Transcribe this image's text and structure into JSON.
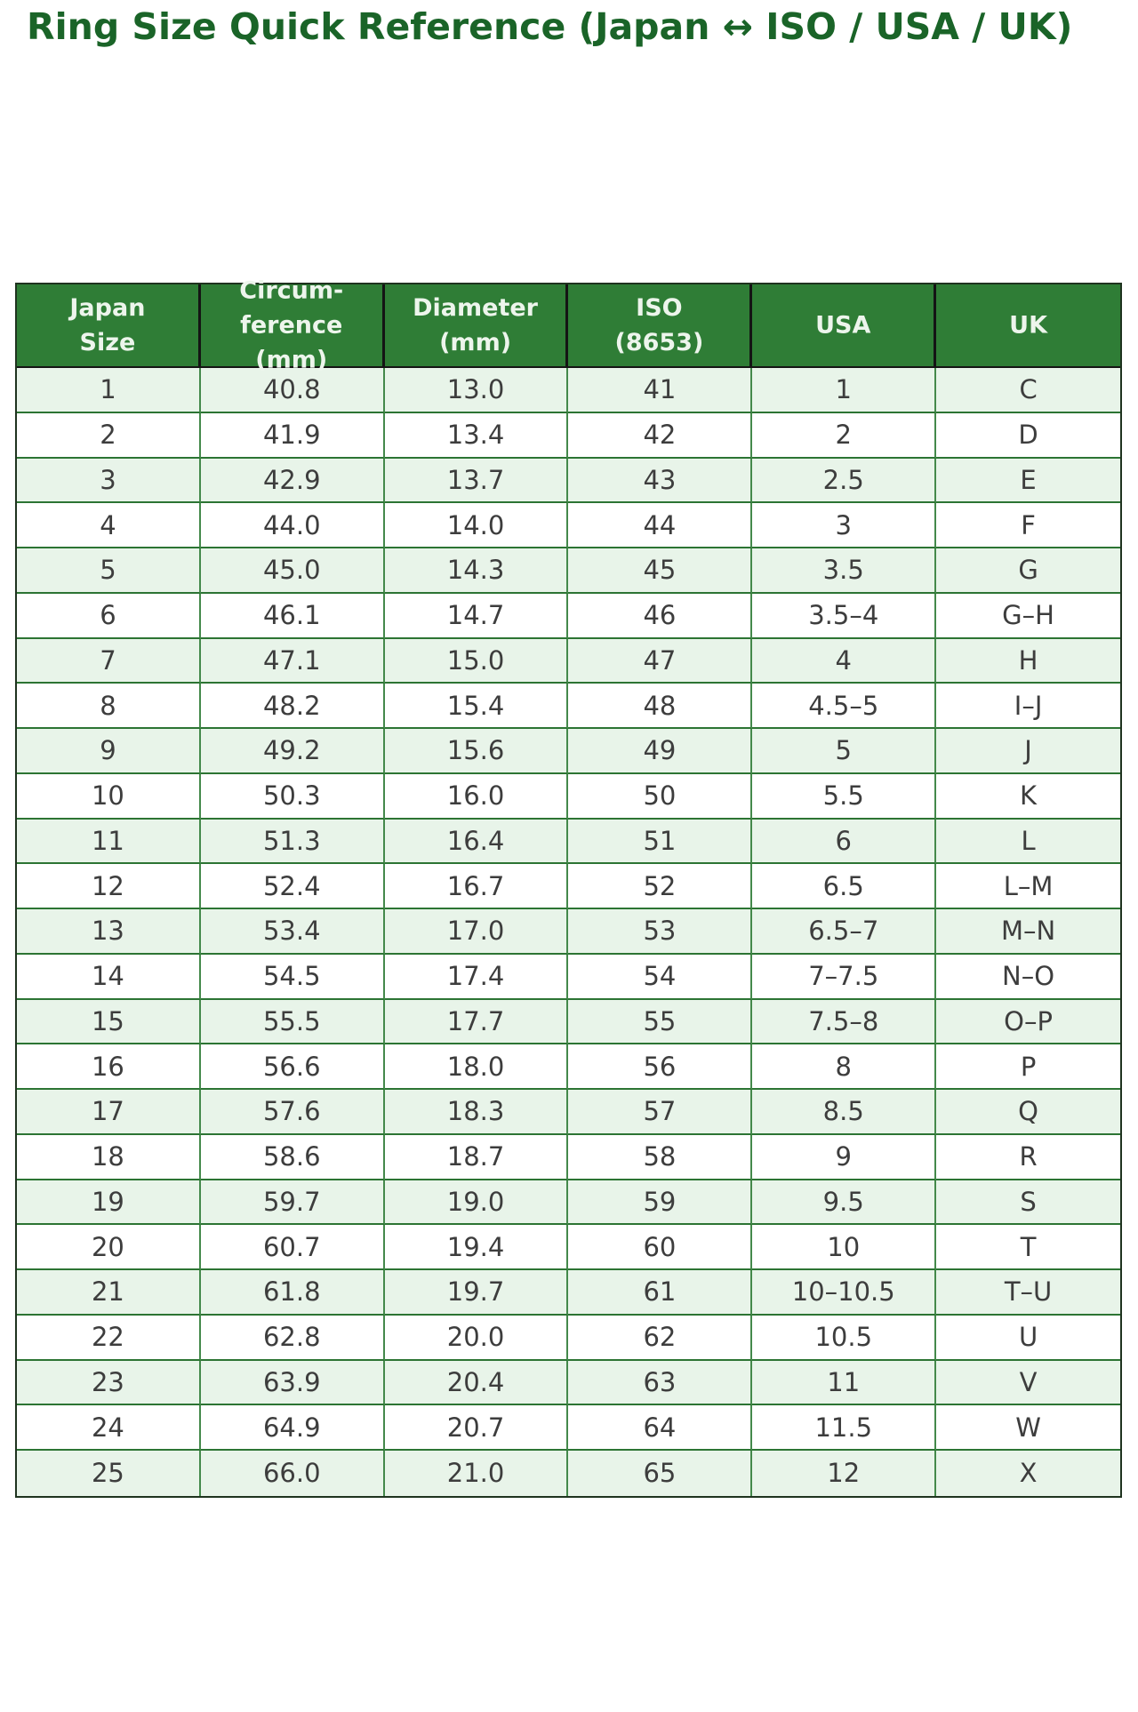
{
  "page": {
    "title": "Ring Size Quick Reference (Japan ↔ ISO / USA / UK)"
  },
  "colors": {
    "title_green": "#1a6428",
    "header_bg": "#2f7d36",
    "header_text": "#edf5ec",
    "row_alt_bg": "#e8f4e9",
    "row_bg": "#ffffff",
    "body_text": "#3d3d3d",
    "grid_green": "#2c7433",
    "header_border": "#141414"
  },
  "chart_data": {
    "type": "table",
    "title": "Ring Size Quick Reference (Japan ↔ ISO / USA / UK)",
    "columns": [
      "Japan Size",
      "Circumference (mm)",
      "Diameter (mm)",
      "ISO (8653)",
      "USA",
      "UK"
    ],
    "columns_display": [
      "Japan\nSize",
      "Circum-\nference\n(mm)",
      "Diameter\n(mm)",
      "ISO\n(8653)",
      "USA",
      "UK"
    ],
    "rows": [
      [
        "1",
        "40.8",
        "13.0",
        "41",
        "1",
        "C"
      ],
      [
        "2",
        "41.9",
        "13.4",
        "42",
        "2",
        "D"
      ],
      [
        "3",
        "42.9",
        "13.7",
        "43",
        "2.5",
        "E"
      ],
      [
        "4",
        "44.0",
        "14.0",
        "44",
        "3",
        "F"
      ],
      [
        "5",
        "45.0",
        "14.3",
        "45",
        "3.5",
        "G"
      ],
      [
        "6",
        "46.1",
        "14.7",
        "46",
        "3.5–4",
        "G–H"
      ],
      [
        "7",
        "47.1",
        "15.0",
        "47",
        "4",
        "H"
      ],
      [
        "8",
        "48.2",
        "15.4",
        "48",
        "4.5–5",
        "I–J"
      ],
      [
        "9",
        "49.2",
        "15.6",
        "49",
        "5",
        "J"
      ],
      [
        "10",
        "50.3",
        "16.0",
        "50",
        "5.5",
        "K"
      ],
      [
        "11",
        "51.3",
        "16.4",
        "51",
        "6",
        "L"
      ],
      [
        "12",
        "52.4",
        "16.7",
        "52",
        "6.5",
        "L–M"
      ],
      [
        "13",
        "53.4",
        "17.0",
        "53",
        "6.5–7",
        "M–N"
      ],
      [
        "14",
        "54.5",
        "17.4",
        "54",
        "7–7.5",
        "N–O"
      ],
      [
        "15",
        "55.5",
        "17.7",
        "55",
        "7.5–8",
        "O–P"
      ],
      [
        "16",
        "56.6",
        "18.0",
        "56",
        "8",
        "P"
      ],
      [
        "17",
        "57.6",
        "18.3",
        "57",
        "8.5",
        "Q"
      ],
      [
        "18",
        "58.6",
        "18.7",
        "58",
        "9",
        "R"
      ],
      [
        "19",
        "59.7",
        "19.0",
        "59",
        "9.5",
        "S"
      ],
      [
        "20",
        "60.7",
        "19.4",
        "60",
        "10",
        "T"
      ],
      [
        "21",
        "61.8",
        "19.7",
        "61",
        "10–10.5",
        "T–U"
      ],
      [
        "22",
        "62.8",
        "20.0",
        "62",
        "10.5",
        "U"
      ],
      [
        "23",
        "63.9",
        "20.4",
        "63",
        "11",
        "V"
      ],
      [
        "24",
        "64.9",
        "20.7",
        "64",
        "11.5",
        "W"
      ],
      [
        "25",
        "66.0",
        "21.0",
        "65",
        "12",
        "X"
      ]
    ]
  }
}
